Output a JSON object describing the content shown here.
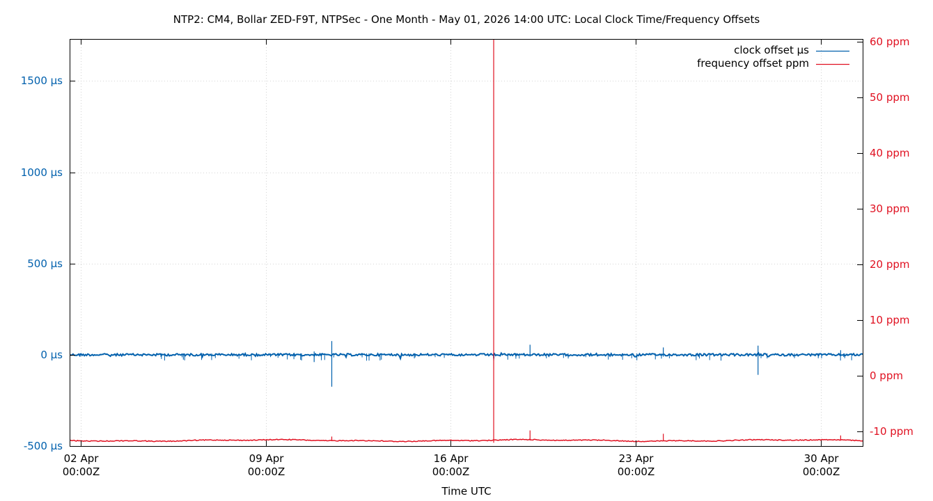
{
  "chart_data": {
    "type": "line",
    "title": "NTP2: CM4, Bollar ZED-F9T, NTPSec - One Month - May 01, 2026 14:00 UTC: Local Clock Time/Frequency Offsets",
    "xlabel": "Time UTC",
    "x_ticks": [
      {
        "date": "2026-04-02",
        "line1": "02 Apr",
        "line2": "00:00Z"
      },
      {
        "date": "2026-04-09",
        "line1": "09 Apr",
        "line2": "00:00Z"
      },
      {
        "date": "2026-04-16",
        "line1": "16 Apr",
        "line2": "00:00Z"
      },
      {
        "date": "2026-04-23",
        "line1": "23 Apr",
        "line2": "00:00Z"
      },
      {
        "date": "2026-04-30",
        "line1": "30 Apr",
        "line2": "00:00Z"
      }
    ],
    "xlim": [
      "2026-04-01T14:00Z",
      "2026-05-01T14:00Z"
    ],
    "y_left": {
      "ticks": [
        "1500 µs",
        "1000 µs",
        "500 µs",
        "0 µs",
        "-500 µs"
      ],
      "values": [
        1500,
        1000,
        500,
        0,
        -500
      ],
      "ylim": [
        -500,
        1730
      ],
      "color": "#0060ad"
    },
    "y_right": {
      "ticks": [
        "60 ppm",
        "50 ppm",
        "40 ppm",
        "30 ppm",
        "20 ppm",
        "10 ppm",
        "0 ppm",
        "-10 ppm"
      ],
      "values": [
        60,
        50,
        40,
        30,
        20,
        10,
        0,
        -10
      ],
      "ylim": [
        -12.6,
        60.5
      ],
      "color": "#e01020"
    },
    "grid": true,
    "legend": "top-right",
    "series": [
      {
        "name": "clock offset µs",
        "axis": "left",
        "color": "#0060ad",
        "baseline": 0,
        "spikes": [
          {
            "date": "2026-04-11T12:00Z",
            "max": 75,
            "min": -175
          },
          {
            "date": "2026-04-10T20:00Z",
            "max": 18,
            "min": -40
          },
          {
            "date": "2026-04-17T15:00Z",
            "max": 10,
            "min": -30
          },
          {
            "date": "2026-04-19T00:00Z",
            "max": 55,
            "min": -10
          },
          {
            "date": "2026-04-24T01:00Z",
            "max": 40,
            "min": -10
          },
          {
            "date": "2026-04-27T15:00Z",
            "max": 50,
            "min": -110
          },
          {
            "date": "2026-04-30T18:00Z",
            "max": 25,
            "min": -8
          }
        ]
      },
      {
        "name": "frequency offset ppm",
        "axis": "right",
        "color": "#e01020",
        "baseline": -11.6,
        "spikes": [
          {
            "date": "2026-04-11T12:00Z",
            "max": -10.9,
            "min": -11.6
          },
          {
            "date": "2026-04-17T15:00Z",
            "max": 60.5,
            "min": -12.0
          },
          {
            "date": "2026-04-19T00:00Z",
            "max": -9.8,
            "min": -11.6
          },
          {
            "date": "2026-04-24T01:00Z",
            "max": -10.4,
            "min": -11.6
          },
          {
            "date": "2026-04-30T18:00Z",
            "max": -10.7,
            "min": -11.6
          }
        ]
      }
    ]
  }
}
